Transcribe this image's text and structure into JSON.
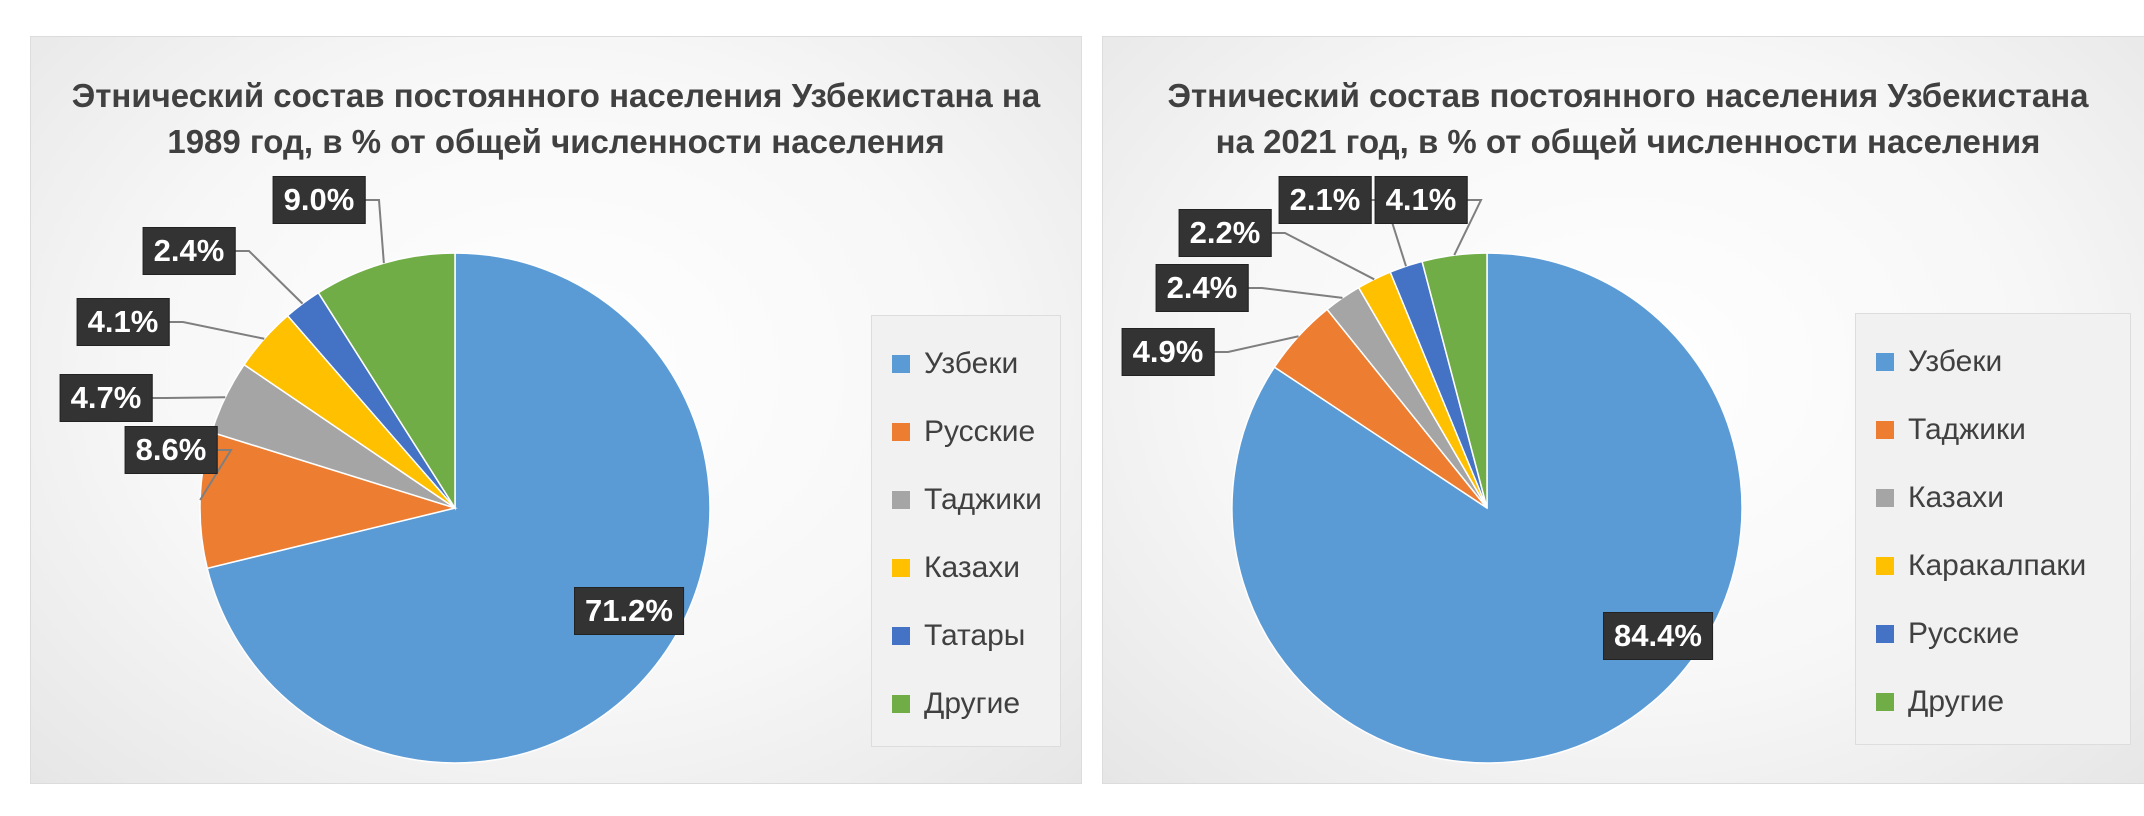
{
  "chart_data": [
    {
      "type": "pie",
      "title": "Этнический состав постоянного населения Узбекистана на 1989 год, в % от общей численности населения",
      "title_lines": [
        "Этнический состав постоянного населения Узбекистана на",
        "1989 год, в % от общей численности населения"
      ],
      "slices": [
        {
          "name": "Узбеки",
          "value": 71.2,
          "label": "71.2%",
          "color": "#5b9bd5"
        },
        {
          "name": "Русские",
          "value": 8.6,
          "label": "8.6%",
          "color": "#ed7d31"
        },
        {
          "name": "Таджики",
          "value": 4.7,
          "label": "4.7%",
          "color": "#a5a5a5"
        },
        {
          "name": "Казахи",
          "value": 4.1,
          "label": "4.1%",
          "color": "#ffc000"
        },
        {
          "name": "Татары",
          "value": 2.4,
          "label": "2.4%",
          "color": "#4472c4"
        },
        {
          "name": "Другие",
          "value": 9.0,
          "label": "9.0%",
          "color": "#70ad47"
        }
      ],
      "legend_position": "right"
    },
    {
      "type": "pie",
      "title": "Этнический состав постоянного населения Узбекистана на 2021 год, в % от общей численности населения",
      "title_lines": [
        "Этнический состав постоянного населения Узбекистана",
        "на 2021 год, в % от общей численности населения"
      ],
      "slices": [
        {
          "name": "Узбеки",
          "value": 84.4,
          "label": "84.4%",
          "color": "#5b9bd5"
        },
        {
          "name": "Таджики",
          "value": 4.9,
          "label": "4.9%",
          "color": "#ed7d31"
        },
        {
          "name": "Казахи",
          "value": 2.4,
          "label": "2.4%",
          "color": "#a5a5a5"
        },
        {
          "name": "Каракалпаки",
          "value": 2.2,
          "label": "2.2%",
          "color": "#ffc000"
        },
        {
          "name": "Русские",
          "value": 2.1,
          "label": "2.1%",
          "color": "#4472c4"
        },
        {
          "name": "Другие",
          "value": 4.1,
          "label": "4.1%",
          "color": "#70ad47"
        }
      ],
      "legend_position": "right"
    }
  ]
}
